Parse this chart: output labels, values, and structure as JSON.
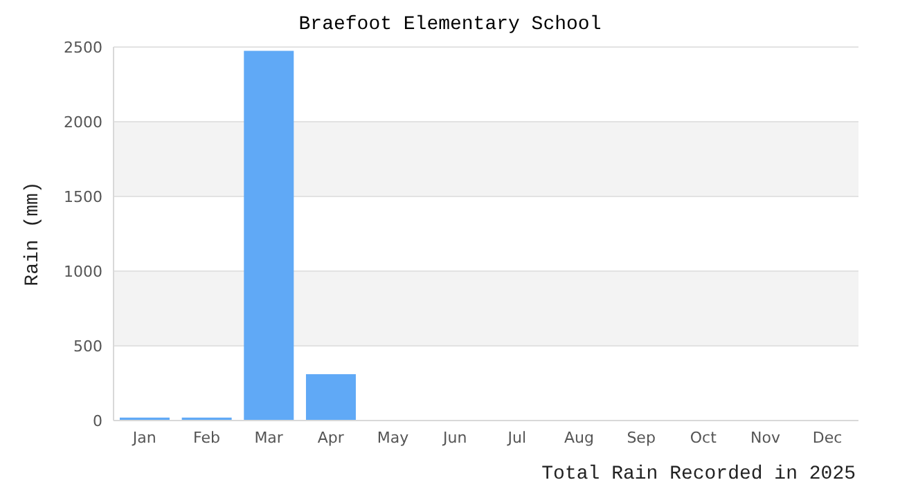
{
  "chart_data": {
    "type": "bar",
    "title": "Braefoot Elementary School",
    "xlabel": "Total Rain Recorded in 2025",
    "ylabel": "Rain (mm)",
    "categories": [
      "Jan",
      "Feb",
      "Mar",
      "Apr",
      "May",
      "Jun",
      "Jul",
      "Aug",
      "Sep",
      "Oct",
      "Nov",
      "Dec"
    ],
    "values": [
      20,
      20,
      2475,
      310,
      0,
      0,
      0,
      0,
      0,
      0,
      0,
      0
    ],
    "color": "#60a9f6",
    "ylim": [
      0,
      2500
    ],
    "yticks": [
      0,
      500,
      1000,
      1500,
      2000,
      2500
    ],
    "grid": "y"
  }
}
